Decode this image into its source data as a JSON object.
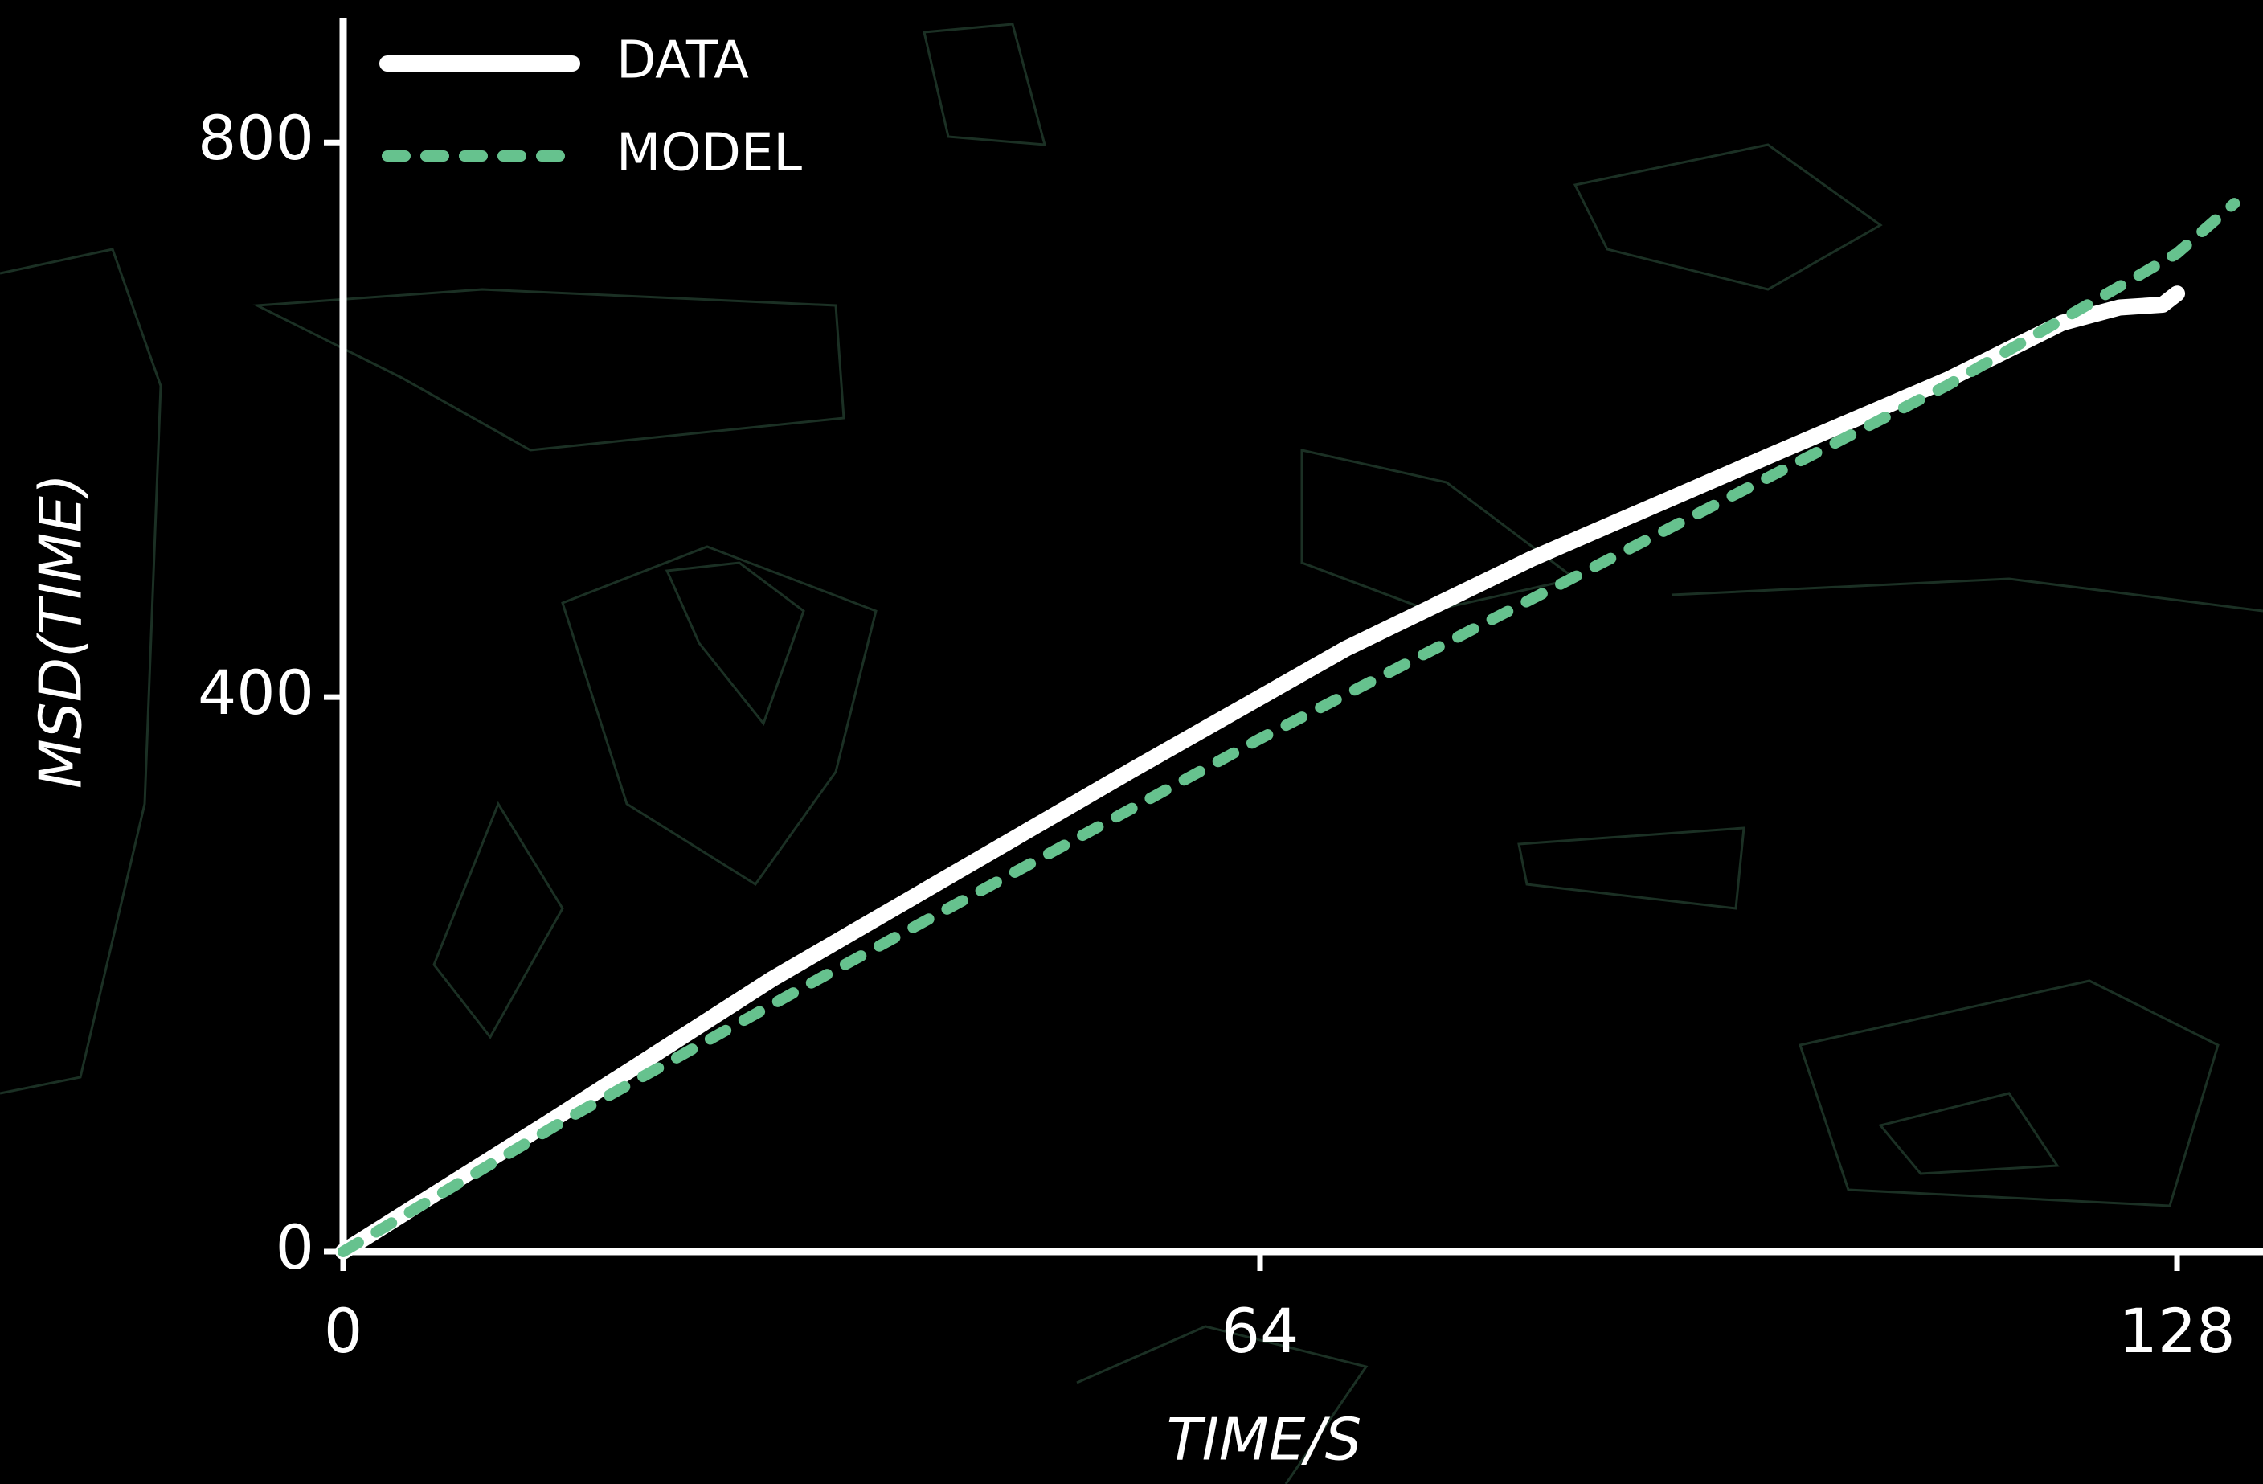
{
  "chart_data": {
    "type": "line",
    "xlabel": "TIME/S",
    "ylabel": "MSD(TIME)",
    "xlim": [
      0,
      134
    ],
    "ylim": [
      0,
      890
    ],
    "xticks": [
      0,
      64,
      128
    ],
    "yticks": [
      0,
      400,
      800
    ],
    "legend": "upper left",
    "series": [
      {
        "name": "DATA",
        "color": "#ffffff",
        "dashed": false,
        "x": [
          0,
          14,
          30,
          55,
          70,
          83,
          100,
          112,
          120,
          124,
          127,
          128
        ],
        "values": [
          0,
          91,
          197,
          347,
          435,
          500,
          576,
          629,
          670,
          681,
          683,
          691
        ]
      },
      {
        "name": "MODEL",
        "color": "#66c28e",
        "dashed": true,
        "x": [
          0,
          16,
          32,
          48,
          64,
          80,
          96,
          112,
          128,
          132
        ],
        "values": [
          0,
          98,
          190,
          280,
          370,
          455,
          540,
          625,
          720,
          756
        ]
      }
    ]
  }
}
